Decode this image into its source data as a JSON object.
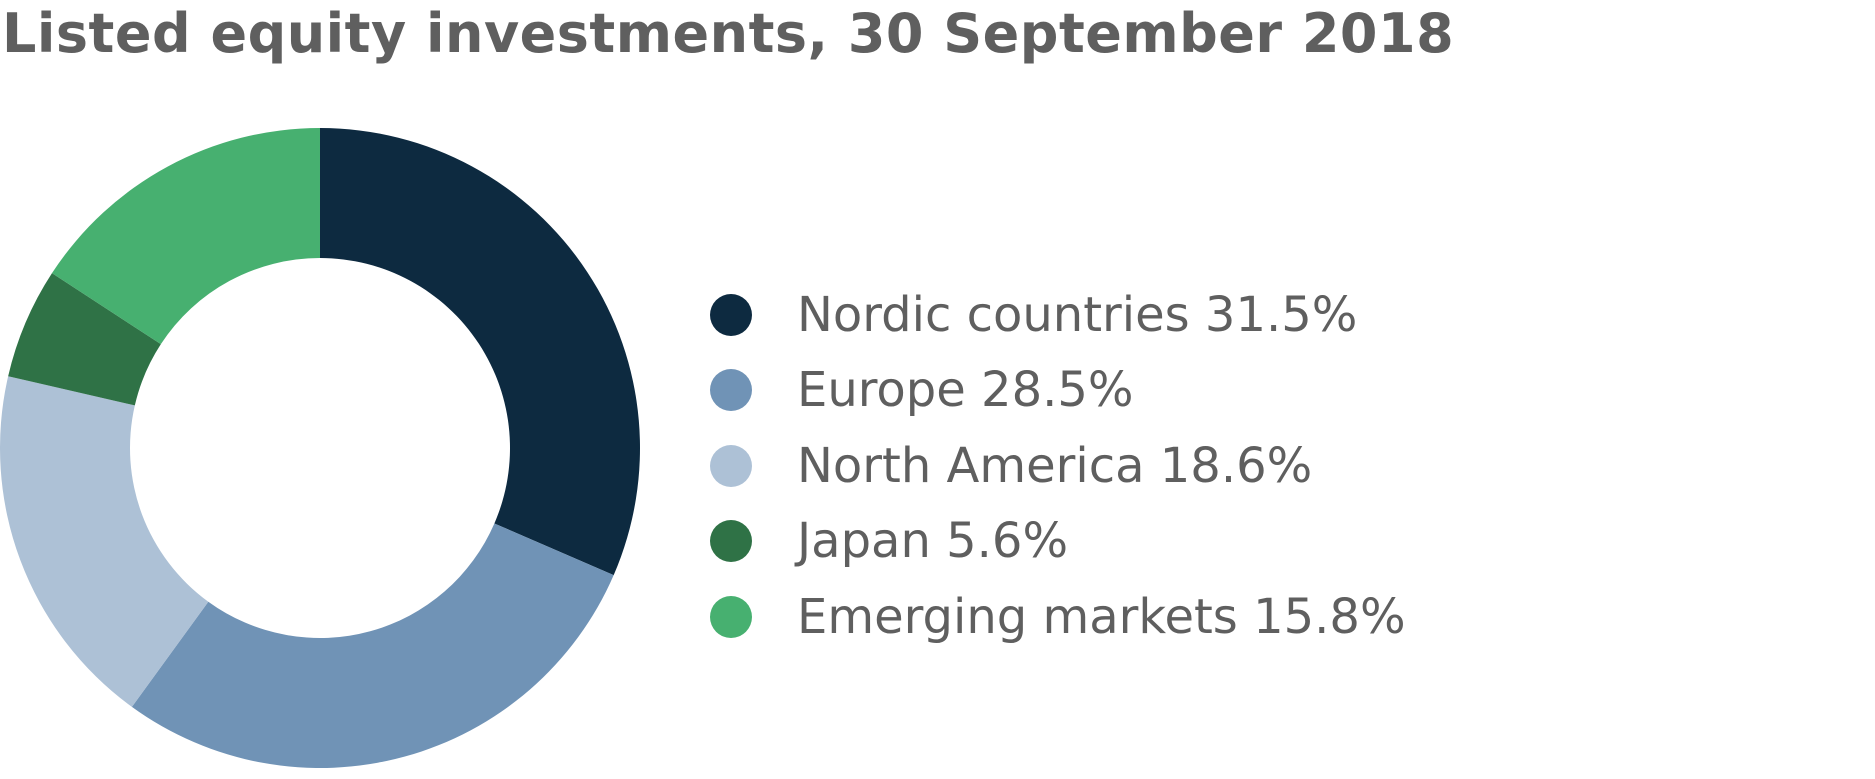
{
  "chart_data": {
    "type": "pie",
    "variant": "donut",
    "title": "Listed equity investments, 30 September 2018",
    "unit": "%",
    "categories": [
      "Nordic countries",
      "Europe",
      "North America",
      "Japan",
      "Emerging markets"
    ],
    "values": [
      31.5,
      28.5,
      18.6,
      5.6,
      15.8
    ],
    "labels": [
      "Nordic countries 31.5%",
      "Europe 28.5%",
      "North America 18.6%",
      "Japan 5.6%",
      "Emerging markets 15.8%"
    ],
    "colors": [
      "#0d2a40",
      "#7093b6",
      "#adc1d6",
      "#2f7246",
      "#47b070"
    ],
    "legend_position": "right"
  }
}
